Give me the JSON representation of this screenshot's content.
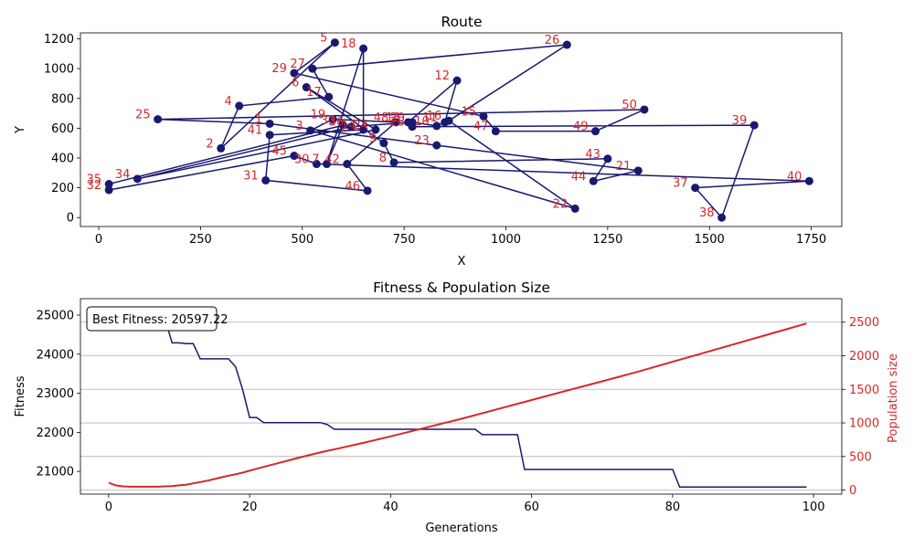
{
  "colors": {
    "route": "#191970",
    "fitness": "#191970",
    "population": "#d62728",
    "label": "#d62728"
  },
  "chart_data": [
    {
      "type": "line",
      "title": "Route",
      "xlabel": "X",
      "ylabel": "Y",
      "xlim": [
        -45,
        1825
      ],
      "ylim": [
        -60,
        1240
      ],
      "xticks": [
        0,
        250,
        500,
        750,
        1000,
        1250,
        1500,
        1750
      ],
      "yticks": [
        0,
        200,
        400,
        600,
        800,
        1000,
        1200
      ],
      "grid": false,
      "cities": [
        {
          "label": "1",
          "x": 420,
          "y": 630
        },
        {
          "label": "2",
          "x": 300,
          "y": 465
        },
        {
          "label": "3",
          "x": 520,
          "y": 585
        },
        {
          "label": "4",
          "x": 345,
          "y": 750
        },
        {
          "label": "5",
          "x": 580,
          "y": 1175
        },
        {
          "label": "6",
          "x": 510,
          "y": 875
        },
        {
          "label": "7",
          "x": 560,
          "y": 360
        },
        {
          "label": "8",
          "x": 725,
          "y": 370
        },
        {
          "label": "9",
          "x": 700,
          "y": 500
        },
        {
          "label": "10",
          "x": 830,
          "y": 615
        },
        {
          "label": "11",
          "x": 850,
          "y": 640
        },
        {
          "label": "12",
          "x": 880,
          "y": 920
        },
        {
          "label": "13",
          "x": 760,
          "y": 640
        },
        {
          "label": "14",
          "x": 650,
          "y": 590
        },
        {
          "label": "15",
          "x": 945,
          "y": 680
        },
        {
          "label": "16",
          "x": 860,
          "y": 650
        },
        {
          "label": "17",
          "x": 565,
          "y": 810
        },
        {
          "label": "18",
          "x": 650,
          "y": 1135
        },
        {
          "label": "19",
          "x": 575,
          "y": 660
        },
        {
          "label": "20",
          "x": 770,
          "y": 640
        },
        {
          "label": "21",
          "x": 1325,
          "y": 315
        },
        {
          "label": "22",
          "x": 1170,
          "y": 60
        },
        {
          "label": "23",
          "x": 830,
          "y": 485
        },
        {
          "label": "24",
          "x": 680,
          "y": 590
        },
        {
          "label": "25",
          "x": 145,
          "y": 660
        },
        {
          "label": "26",
          "x": 1150,
          "y": 1160
        },
        {
          "label": "27",
          "x": 525,
          "y": 1000
        },
        {
          "label": "28",
          "x": 770,
          "y": 610
        },
        {
          "label": "29",
          "x": 480,
          "y": 970
        },
        {
          "label": "30",
          "x": 535,
          "y": 360
        },
        {
          "label": "31",
          "x": 410,
          "y": 250
        },
        {
          "label": "32",
          "x": 25,
          "y": 185
        },
        {
          "label": "33",
          "x": 600,
          "y": 620
        },
        {
          "label": "34",
          "x": 95,
          "y": 260
        },
        {
          "label": "35",
          "x": 25,
          "y": 225
        },
        {
          "label": "36",
          "x": 620,
          "y": 610
        },
        {
          "label": "37",
          "x": 1465,
          "y": 200
        },
        {
          "label": "38",
          "x": 1530,
          "y": 0
        },
        {
          "label": "39",
          "x": 1610,
          "y": 620
        },
        {
          "label": "40",
          "x": 1745,
          "y": 245
        },
        {
          "label": "41",
          "x": 420,
          "y": 555
        },
        {
          "label": "42",
          "x": 610,
          "y": 360
        },
        {
          "label": "43",
          "x": 1250,
          "y": 395
        },
        {
          "label": "44",
          "x": 1215,
          "y": 245
        },
        {
          "label": "45",
          "x": 480,
          "y": 415
        },
        {
          "label": "46",
          "x": 660,
          "y": 180
        },
        {
          "label": "47",
          "x": 975,
          "y": 580
        },
        {
          "label": "48",
          "x": 730,
          "y": 640
        },
        {
          "label": "49",
          "x": 1220,
          "y": 580
        },
        {
          "label": "50",
          "x": 1340,
          "y": 725
        }
      ],
      "route": [
        "26",
        "27",
        "17",
        "4",
        "2",
        "5",
        "29",
        "15",
        "47",
        "49",
        "50",
        "25",
        "1",
        "23",
        "21",
        "44",
        "43",
        "8",
        "9",
        "6",
        "24",
        "34",
        "36",
        "20",
        "10",
        "11",
        "12",
        "13",
        "28",
        "39",
        "38",
        "37",
        "40",
        "30",
        "45",
        "32",
        "35",
        "33",
        "7",
        "18",
        "14",
        "41",
        "31",
        "46",
        "42",
        "48",
        "19",
        "3",
        "22",
        "16",
        "26"
      ]
    },
    {
      "type": "line",
      "title": "Fitness & Population Size",
      "xlabel": "Generations",
      "ylabel": "Fitness",
      "y2label": "Population size",
      "annotation": "Best Fitness: 20597.22",
      "xlim": [
        -4,
        104
      ],
      "ylim": [
        20420,
        25420
      ],
      "y2lim": [
        -60,
        2850
      ],
      "xticks": [
        0,
        20,
        40,
        60,
        80,
        100
      ],
      "yticks": [
        21000,
        22000,
        23000,
        24000,
        25000
      ],
      "y2ticks": [
        0,
        500,
        1000,
        1500,
        2000,
        2500
      ],
      "grid": true,
      "series": [
        {
          "name": "",
          "axis": "left",
          "x": [
            8,
            9,
            10,
            11,
            12,
            13,
            14,
            15,
            16,
            17,
            18,
            19,
            20,
            21,
            22,
            23,
            30,
            31,
            32,
            52,
            53,
            58,
            59,
            80,
            81,
            99
          ],
          "values": [
            24900,
            24290,
            24290,
            24270,
            24270,
            23880,
            23880,
            23880,
            23880,
            23880,
            23680,
            23100,
            22380,
            22380,
            22250,
            22250,
            22250,
            22200,
            22080,
            22080,
            21940,
            21940,
            21050,
            21050,
            20600,
            20600
          ]
        },
        {
          "name": "",
          "axis": "right",
          "x": [
            0,
            1,
            2,
            3,
            4,
            5,
            6,
            7,
            8,
            9,
            10,
            11,
            12,
            13,
            14,
            15,
            16,
            17,
            18,
            19,
            20,
            22,
            24,
            26,
            28,
            30,
            33,
            36,
            40,
            45,
            50,
            55,
            60,
            65,
            70,
            75,
            80,
            85,
            90,
            95,
            99
          ],
          "values": [
            110,
            70,
            55,
            50,
            50,
            50,
            50,
            50,
            55,
            60,
            70,
            80,
            100,
            120,
            140,
            165,
            190,
            215,
            235,
            260,
            290,
            345,
            400,
            455,
            510,
            560,
            630,
            700,
            800,
            930,
            1060,
            1200,
            1340,
            1480,
            1620,
            1760,
            1910,
            2060,
            2210,
            2360,
            2480
          ]
        }
      ]
    }
  ]
}
